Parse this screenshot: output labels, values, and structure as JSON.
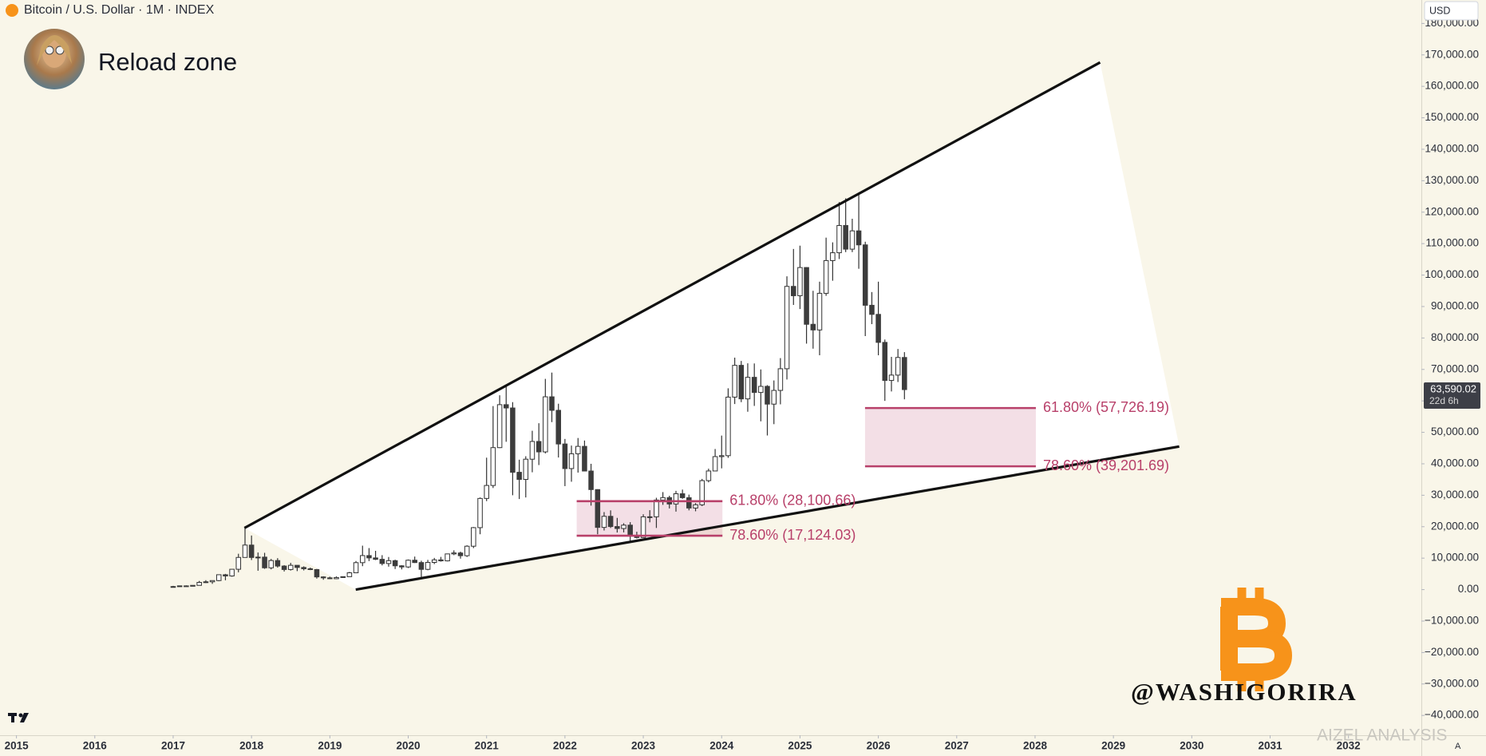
{
  "chart_data": {
    "type": "candlestick",
    "header": "Bitcoin / U.S. Dollar · 1M · INDEX",
    "title": "Reload zone",
    "currency": "USD",
    "current_price": {
      "value": 63590.02,
      "label": "63,590.02"
    },
    "countdown": "22d 6h",
    "watermark": "@WASHIGORIRA",
    "source_watermark": "AIZEL ANALYSIS",
    "scale_mode": "A",
    "up_color": "#ffffff",
    "down_color": "#3c3c3c",
    "xlim": [
      2014.79,
      2032.93
    ],
    "xticks": [
      2015,
      2016,
      2017,
      2018,
      2019,
      2020,
      2021,
      2022,
      2023,
      2024,
      2025,
      2026,
      2027,
      2028,
      2029,
      2030,
      2031,
      2032
    ],
    "ylim": [
      -46300,
      187450
    ],
    "yticks": [
      {
        "value": -40000,
        "label": "−40,000.00"
      },
      {
        "value": -30000,
        "label": "−30,000.00"
      },
      {
        "value": -20000,
        "label": "−20,000.00"
      },
      {
        "value": -10000,
        "label": "−10,000.00"
      },
      {
        "value": 0,
        "label": "0.00"
      },
      {
        "value": 10000,
        "label": "10,000.00"
      },
      {
        "value": 20000,
        "label": "20,000.00"
      },
      {
        "value": 30000,
        "label": "30,000.00"
      },
      {
        "value": 40000,
        "label": "40,000.00"
      },
      {
        "value": 50000,
        "label": "50,000.00"
      },
      {
        "value": 60000,
        "label": "60,000.00"
      },
      {
        "value": 70000,
        "label": "70,000.00"
      },
      {
        "value": 80000,
        "label": "80,000.00"
      },
      {
        "value": 90000,
        "label": "90,000.00"
      },
      {
        "value": 100000,
        "label": "100,000.00"
      },
      {
        "value": 110000,
        "label": "110,000.00"
      },
      {
        "value": 120000,
        "label": "120,000.00"
      },
      {
        "value": 130000,
        "label": "130,000.00"
      },
      {
        "value": 140000,
        "label": "140,000.00"
      },
      {
        "value": 150000,
        "label": "150,000.00"
      },
      {
        "value": 160000,
        "label": "160,000.00"
      },
      {
        "value": 170000,
        "label": "170,000.00"
      },
      {
        "value": 180000,
        "label": "180,000.00"
      }
    ],
    "x": [
      2017,
      2017.083,
      2017.167,
      2017.25,
      2017.333,
      2017.417,
      2017.5,
      2017.583,
      2017.667,
      2017.75,
      2017.833,
      2017.917,
      2018,
      2018.083,
      2018.167,
      2018.25,
      2018.333,
      2018.417,
      2018.5,
      2018.583,
      2018.667,
      2018.75,
      2018.833,
      2018.917,
      2019,
      2019.083,
      2019.167,
      2019.25,
      2019.333,
      2019.417,
      2019.5,
      2019.583,
      2019.667,
      2019.75,
      2019.833,
      2019.917,
      2020,
      2020.083,
      2020.167,
      2020.25,
      2020.333,
      2020.417,
      2020.5,
      2020.583,
      2020.667,
      2020.75,
      2020.833,
      2020.917,
      2021,
      2021.083,
      2021.167,
      2021.25,
      2021.333,
      2021.417,
      2021.5,
      2021.583,
      2021.667,
      2021.75,
      2021.833,
      2021.917,
      2022,
      2022.083,
      2022.167,
      2022.25,
      2022.333,
      2022.417,
      2022.5,
      2022.583,
      2022.667,
      2022.75,
      2022.833,
      2022.917,
      2023,
      2023.083,
      2023.167,
      2023.25,
      2023.333,
      2023.417,
      2023.5,
      2023.583,
      2023.667,
      2023.75,
      2023.833,
      2023.917,
      2024,
      2024.083,
      2024.167,
      2024.25,
      2024.333,
      2024.417,
      2024.5,
      2024.583,
      2024.667,
      2024.75,
      2024.833,
      2024.917,
      2025,
      2025.083,
      2025.167,
      2025.25,
      2025.333,
      2025.417,
      2025.5,
      2025.583,
      2025.667,
      2025.75,
      2025.833,
      2025.917,
      2026,
      2026.083,
      2026.167,
      2026.25,
      2026.333
    ],
    "open": [
      963,
      970,
      1190,
      1080,
      1350,
      2300,
      2480,
      2870,
      4730,
      4340,
      6470,
      10230,
      14160,
      10220,
      10330,
      6930,
      9240,
      7490,
      6390,
      7730,
      7040,
      6630,
      6370,
      4040,
      3740,
      3460,
      3850,
      4110,
      5350,
      8570,
      10820,
      10080,
      9630,
      8300,
      9200,
      7570,
      7200,
      9350,
      8600,
      6440,
      8650,
      9460,
      9140,
      11350,
      11650,
      10780,
      13800,
      19700,
      28990,
      33110,
      45140,
      58800,
      57750,
      37300,
      35040,
      41460,
      47100,
      43790,
      61300,
      57000,
      46300,
      38480,
      43190,
      45540,
      37700,
      31800,
      19780,
      23300,
      20050,
      19430,
      20500,
      17170,
      16550,
      23140,
      23150,
      28480,
      29250,
      27220,
      30480,
      29230,
      25940,
      26970,
      34650,
      37720,
      42280,
      42580,
      61200,
      71300,
      60640,
      67490,
      62680,
      64620,
      58970,
      63330,
      70220,
      96400,
      93430,
      102400,
      84350,
      82550,
      94200,
      104600,
      107100,
      115760,
      108240,
      114050,
      109600,
      90400,
      87500,
      78600,
      66500,
      68200,
      73800
    ],
    "high": [
      1190,
      1200,
      1350,
      1350,
      2760,
      3000,
      2920,
      4740,
      5000,
      6470,
      11400,
      19800,
      17200,
      11800,
      11700,
      9760,
      10000,
      7780,
      8500,
      7760,
      7400,
      7000,
      6570,
      4240,
      4110,
      4200,
      4150,
      5630,
      9100,
      13970,
      13200,
      12330,
      10950,
      10370,
      9510,
      7750,
      9580,
      10500,
      9190,
      9460,
      10080,
      10400,
      11450,
      12480,
      12070,
      14100,
      19900,
      29300,
      41950,
      58350,
      61780,
      64900,
      59600,
      41300,
      42400,
      50500,
      52900,
      67000,
      69000,
      59100,
      47900,
      45800,
      48200,
      47400,
      40000,
      31900,
      24650,
      25200,
      22800,
      21100,
      21450,
      18400,
      23950,
      25250,
      29200,
      31000,
      29840,
      31400,
      31800,
      30200,
      27500,
      35200,
      38450,
      44700,
      48970,
      64000,
      73750,
      72700,
      71950,
      71900,
      70000,
      65000,
      66500,
      73600,
      99600,
      108300,
      109350,
      102500,
      95000,
      97900,
      111900,
      110400,
      123200,
      124400,
      117900,
      126200,
      110600,
      94600,
      97900,
      79500,
      74000,
      76500,
      75500
    ],
    "low": [
      750,
      920,
      890,
      1060,
      1340,
      2100,
      1830,
      2670,
      2970,
      4110,
      5500,
      10700,
      9400,
      6000,
      6600,
      6430,
      7000,
      5760,
      6070,
      5880,
      6100,
      6200,
      3500,
      3130,
      3350,
      3380,
      3700,
      4080,
      5330,
      7450,
      9070,
      9400,
      7700,
      7300,
      6550,
      6430,
      6870,
      8470,
      3850,
      6160,
      8120,
      8900,
      8980,
      10950,
      9850,
      10370,
      13200,
      17600,
      28130,
      32300,
      45000,
      47000,
      30000,
      28800,
      29300,
      37300,
      39600,
      43300,
      53250,
      42000,
      32900,
      34300,
      37200,
      37600,
      26700,
      17600,
      18800,
      19600,
      18150,
      18200,
      15500,
      16260,
      16500,
      21400,
      19600,
      26950,
      25800,
      24800,
      28860,
      25200,
      24900,
      26550,
      34100,
      37650,
      38550,
      41900,
      59000,
      59600,
      56550,
      58400,
      53500,
      49000,
      52600,
      58900,
      66800,
      90500,
      89200,
      78200,
      76600,
      74500,
      93400,
      98200,
      105100,
      107300,
      107300,
      102000,
      80600,
      84400,
      74500,
      60000,
      63000,
      66000,
      60500
    ],
    "close": [
      970,
      1190,
      1080,
      1350,
      2300,
      2480,
      2870,
      4730,
      4340,
      6470,
      10230,
      14160,
      10220,
      10330,
      6930,
      9240,
      7490,
      6390,
      7730,
      7040,
      6630,
      6370,
      4040,
      3740,
      3460,
      3850,
      4110,
      5350,
      8570,
      10820,
      10080,
      9630,
      8300,
      9200,
      7570,
      7200,
      9350,
      8600,
      6440,
      8650,
      9460,
      9140,
      11350,
      11650,
      10780,
      13800,
      19700,
      28990,
      33110,
      45140,
      58800,
      57750,
      37300,
      35040,
      41460,
      47100,
      43790,
      61300,
      57000,
      46300,
      38480,
      43190,
      45540,
      37700,
      31800,
      19780,
      23300,
      20050,
      19430,
      20500,
      17170,
      16550,
      23140,
      23150,
      28480,
      29250,
      27220,
      30480,
      29230,
      25940,
      26970,
      34650,
      37720,
      42280,
      42580,
      61200,
      71300,
      60640,
      67490,
      62680,
      64620,
      58970,
      63330,
      70220,
      96400,
      93430,
      102400,
      84350,
      82550,
      94200,
      104600,
      107100,
      115760,
      108240,
      114050,
      109600,
      90400,
      87500,
      78600,
      66500,
      68200,
      73800,
      63590.02
    ],
    "trendlines": [
      {
        "x": [
          2017.91,
          2028.83
        ],
        "y": [
          19600,
          167600
        ]
      },
      {
        "x": [
          2019.33,
          2029.84
        ],
        "y": [
          0,
          45500
        ]
      }
    ],
    "fib_zones": [
      {
        "x_range": [
          2022.15,
          2024.01
        ],
        "levels": [
          {
            "value": 28100.66,
            "label": "61.80% (28,100.66)"
          },
          {
            "value": 17124.03,
            "label": "78.60% (17,124.03)"
          }
        ]
      },
      {
        "x_range": [
          2025.83,
          2028.01
        ],
        "levels": [
          {
            "value": 57726.19,
            "label": "61.80% (57,726.19)"
          },
          {
            "value": 39201.69,
            "label": "78.60% (39,201.69)"
          }
        ]
      }
    ],
    "fib_color": "#b8406a"
  }
}
